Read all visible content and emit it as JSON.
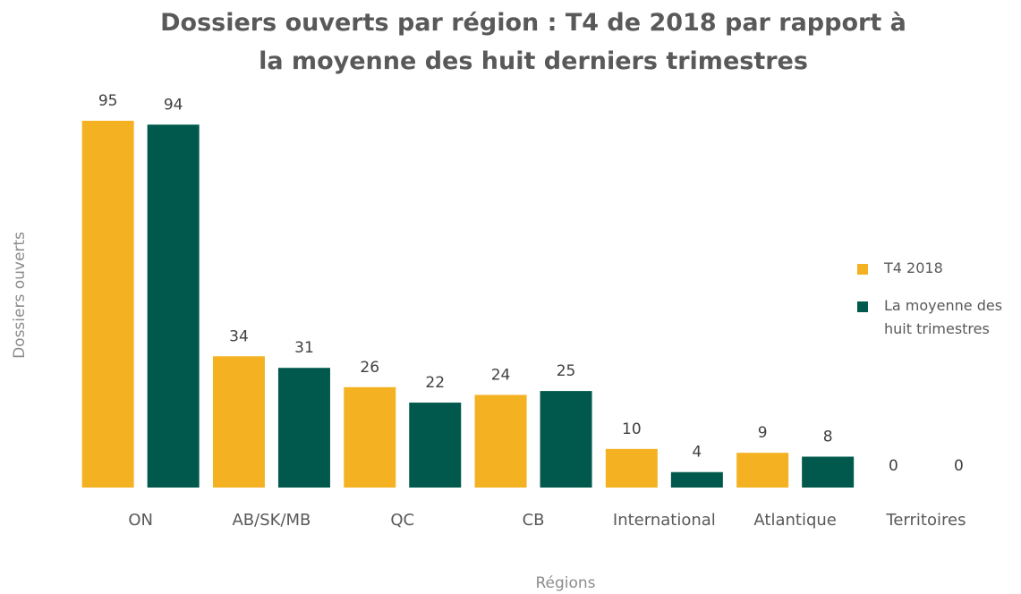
{
  "chart_data": {
    "type": "bar",
    "title": "Dossiers ouverts par région : T4 de 2018 par rapport à la moyenne des huit derniers trimestres",
    "x_label": "Régions",
    "y_label": "Dossiers ouverts",
    "categories": [
      "ON",
      "AB/SK/MB",
      "QC",
      "CB",
      "International",
      "Atlantique",
      "Territoires"
    ],
    "series": [
      {
        "name": "T4 2018",
        "color": "#F4B223",
        "values": [
          95,
          34,
          26,
          24,
          10,
          9,
          0
        ]
      },
      {
        "name": "La moyenne des huit trimestres",
        "color": "#00594C",
        "values": [
          94,
          31,
          22,
          25,
          4,
          8,
          0
        ]
      }
    ],
    "legend": "right"
  }
}
